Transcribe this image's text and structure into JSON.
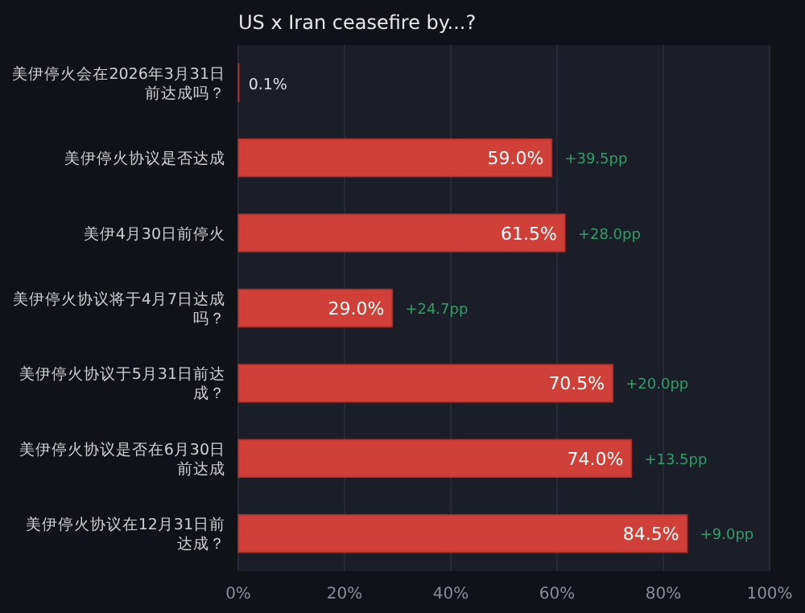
{
  "chart_data": {
    "type": "bar",
    "orientation": "horizontal",
    "title": "US x Iran ceasefire by...?",
    "categories": [
      "美伊停火会在2026年3月31日前达成吗？",
      "美伊停火协议是否达成",
      "美伊4月30日前停火",
      "美伊停火协议将于4月7日达成吗？",
      "美伊停火协议于5月31日前达成？",
      "美伊停火协议是否在6月30日前达成",
      "美伊停火协议在12月31日前达成？"
    ],
    "values": [
      0.1,
      59.0,
      61.5,
      29.0,
      70.5,
      74.0,
      84.5
    ],
    "value_labels": [
      "0.1%",
      "59.0%",
      "61.5%",
      "29.0%",
      "70.5%",
      "74.0%",
      "84.5%"
    ],
    "color": "#d04038",
    "xlim": [
      0,
      100
    ],
    "xticks": [
      {
        "value": 0,
        "label": "0%"
      },
      {
        "value": 20,
        "label": "20%"
      },
      {
        "value": 40,
        "label": "40%"
      },
      {
        "value": 60,
        "label": "60%"
      },
      {
        "value": 80,
        "label": "80%"
      },
      {
        "value": 100,
        "label": "100%"
      }
    ],
    "grid": "x",
    "annotations": [
      {
        "text": "+39.5pp",
        "x": 59.0,
        "y": "美伊停火协议是否达成"
      },
      {
        "text": "+28.0pp",
        "x": 61.5,
        "y": "美伊4月30日前停火"
      },
      {
        "text": "+24.7pp",
        "x": 29.0,
        "y": "美伊停火协议将于4月7日达成吗？"
      },
      {
        "text": "+20.0pp",
        "x": 70.5,
        "y": "美伊停火协议于5月31日前达成？"
      },
      {
        "text": "+13.5pp",
        "x": 74.0,
        "y": "美伊停火协议是否在6月30日前达成"
      },
      {
        "text": "+9.0pp",
        "x": 84.5,
        "y": "美伊停火协议在12月31日前达成？"
      }
    ]
  }
}
